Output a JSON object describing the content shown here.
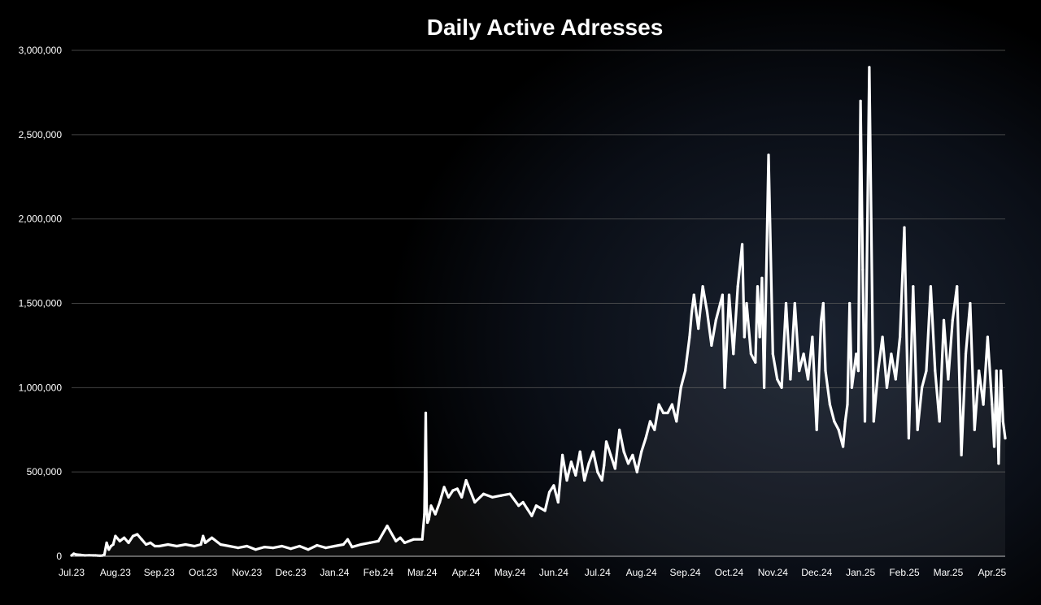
{
  "chart_data": {
    "type": "line",
    "title": "Daily Active Adresses",
    "xlabel": "",
    "ylabel": "",
    "ylim": [
      0,
      3000000
    ],
    "grid": true,
    "legend": "none",
    "y_ticks": [
      {
        "value": 0,
        "label": "0"
      },
      {
        "value": 500000,
        "label": "500,000"
      },
      {
        "value": 1000000,
        "label": "1,000,000"
      },
      {
        "value": 1500000,
        "label": "1,500,000"
      },
      {
        "value": 2000000,
        "label": "2,000,000"
      },
      {
        "value": 2500000,
        "label": "2,500,000"
      },
      {
        "value": 3000000,
        "label": "3,000,000"
      }
    ],
    "x_ticks": [
      "Jul.23",
      "Aug.23",
      "Sep.23",
      "Oct.23",
      "Nov.23",
      "Dec.23",
      "Jan.24",
      "Feb.24",
      "Mar.24",
      "Apr.24",
      "May.24",
      "Jun.24",
      "Jul.24",
      "Aug.24",
      "Sep.24",
      "Oct.24",
      "Nov.24",
      "Dec.24",
      "Jan.25",
      "Feb.25",
      "Mar.25",
      "Apr.25"
    ],
    "series": [
      {
        "color": "#ffffff",
        "x": [
          0,
          0.05,
          0.1,
          0.2,
          0.3,
          0.4,
          0.5,
          0.55,
          0.6,
          0.65,
          0.7,
          0.75,
          0.8,
          0.85,
          0.9,
          0.95,
          1.0,
          1.1,
          1.2,
          1.3,
          1.4,
          1.5,
          1.6,
          1.7,
          1.8,
          1.9,
          2.0,
          2.2,
          2.4,
          2.6,
          2.8,
          2.95,
          3.0,
          3.05,
          3.2,
          3.4,
          3.6,
          3.8,
          4.0,
          4.2,
          4.4,
          4.6,
          4.8,
          5.0,
          5.2,
          5.4,
          5.6,
          5.8,
          6.0,
          6.2,
          6.3,
          6.4,
          6.6,
          6.8,
          7.0,
          7.2,
          7.4,
          7.5,
          7.6,
          7.8,
          8.0,
          8.05,
          8.08,
          8.1,
          8.12,
          8.15,
          8.2,
          8.3,
          8.4,
          8.5,
          8.6,
          8.7,
          8.8,
          8.9,
          9.0,
          9.2,
          9.4,
          9.6,
          9.8,
          10.0,
          10.2,
          10.3,
          10.4,
          10.5,
          10.6,
          10.8,
          10.9,
          11.0,
          11.1,
          11.2,
          11.3,
          11.4,
          11.5,
          11.6,
          11.7,
          11.8,
          11.9,
          12.0,
          12.1,
          12.15,
          12.2,
          12.3,
          12.4,
          12.5,
          12.6,
          12.7,
          12.8,
          12.9,
          13.0,
          13.1,
          13.2,
          13.3,
          13.4,
          13.5,
          13.6,
          13.7,
          13.8,
          13.9,
          14.0,
          14.1,
          14.15,
          14.2,
          14.3,
          14.4,
          14.5,
          14.6,
          14.7,
          14.8,
          14.85,
          14.9,
          15.0,
          15.1,
          15.2,
          15.3,
          15.35,
          15.4,
          15.5,
          15.6,
          15.65,
          15.7,
          15.75,
          15.8,
          15.9,
          16.0,
          16.1,
          16.2,
          16.3,
          16.4,
          16.5,
          16.6,
          16.7,
          16.8,
          16.9,
          17.0,
          17.1,
          17.15,
          17.2,
          17.3,
          17.4,
          17.5,
          17.6,
          17.65,
          17.7,
          17.75,
          17.8,
          17.9,
          17.95,
          18.0,
          18.05,
          18.1,
          18.2,
          18.3,
          18.4,
          18.5,
          18.6,
          18.7,
          18.8,
          18.9,
          19.0,
          19.1,
          19.2,
          19.3,
          19.4,
          19.5,
          19.6,
          19.7,
          19.8,
          19.9,
          20.0,
          20.1,
          20.2,
          20.3,
          20.4,
          20.5,
          20.6,
          20.7,
          20.8,
          20.9,
          21.0,
          21.05,
          21.1,
          21.15,
          21.2,
          21.25,
          21.3
        ],
        "values": [
          5000,
          15000,
          10000,
          8000,
          5000,
          6000,
          5000,
          5000,
          4000,
          3000,
          4000,
          10000,
          80000,
          40000,
          60000,
          70000,
          120000,
          90000,
          110000,
          80000,
          120000,
          130000,
          100000,
          70000,
          80000,
          60000,
          60000,
          70000,
          60000,
          70000,
          60000,
          70000,
          120000,
          80000,
          110000,
          70000,
          60000,
          50000,
          60000,
          40000,
          55000,
          50000,
          60000,
          45000,
          60000,
          40000,
          65000,
          50000,
          60000,
          70000,
          100000,
          55000,
          70000,
          80000,
          90000,
          180000,
          90000,
          110000,
          80000,
          100000,
          100000,
          250000,
          850000,
          300000,
          200000,
          220000,
          300000,
          250000,
          320000,
          410000,
          350000,
          390000,
          400000,
          350000,
          450000,
          320000,
          370000,
          350000,
          360000,
          370000,
          300000,
          320000,
          280000,
          240000,
          300000,
          270000,
          380000,
          420000,
          320000,
          600000,
          450000,
          560000,
          480000,
          620000,
          450000,
          550000,
          620000,
          500000,
          450000,
          540000,
          680000,
          600000,
          520000,
          750000,
          620000,
          550000,
          600000,
          500000,
          620000,
          700000,
          800000,
          750000,
          900000,
          850000,
          850000,
          900000,
          800000,
          1000000,
          1100000,
          1300000,
          1450000,
          1550000,
          1350000,
          1600000,
          1450000,
          1250000,
          1400000,
          1500000,
          1550000,
          1000000,
          1550000,
          1200000,
          1600000,
          1850000,
          1300000,
          1500000,
          1200000,
          1150000,
          1600000,
          1300000,
          1650000,
          1000000,
          2380000,
          1200000,
          1050000,
          1000000,
          1500000,
          1050000,
          1500000,
          1100000,
          1200000,
          1050000,
          1300000,
          750000,
          1400000,
          1500000,
          1100000,
          900000,
          800000,
          750000,
          650000,
          800000,
          900000,
          1500000,
          1000000,
          1200000,
          1100000,
          2700000,
          1700000,
          800000,
          2900000,
          800000,
          1100000,
          1300000,
          1000000,
          1200000,
          1050000,
          1300000,
          1950000,
          700000,
          1600000,
          750000,
          1000000,
          1100000,
          1600000,
          1100000,
          800000,
          1400000,
          1050000,
          1400000,
          1600000,
          600000,
          1200000,
          1500000,
          750000,
          1100000,
          900000,
          1300000,
          900000,
          650000,
          1100000,
          550000,
          1100000,
          800000,
          700000
        ]
      }
    ]
  }
}
